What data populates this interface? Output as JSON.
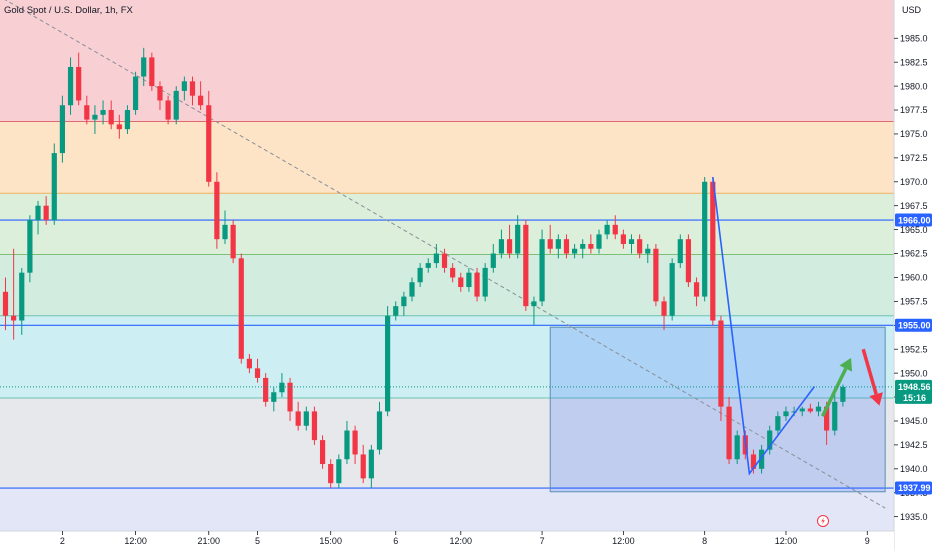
{
  "chart_data": {
    "type": "candlestick",
    "title": "Gold Spot / U.S. Dollar, 1h, FX",
    "currency": "USD",
    "ylim": [
      1933.5,
      1989
    ],
    "y_ticks": [
      1935,
      1937.5,
      1940,
      1942.5,
      1945,
      1947.5,
      1950,
      1952.5,
      1955,
      1957.5,
      1960,
      1962.5,
      1965,
      1967.5,
      1970,
      1972.5,
      1975,
      1977.5,
      1980,
      1982.5,
      1985
    ],
    "x_ticks": [
      {
        "label": "2",
        "index": 7
      },
      {
        "label": "12:00",
        "index": 16
      },
      {
        "label": "21:00",
        "index": 25
      },
      {
        "label": "5",
        "index": 31
      },
      {
        "label": "15:00",
        "index": 40
      },
      {
        "label": "6",
        "index": 48
      },
      {
        "label": "12:00",
        "index": 56
      },
      {
        "label": "7",
        "index": 66
      },
      {
        "label": "12:00",
        "index": 76
      },
      {
        "label": "8",
        "index": 86
      },
      {
        "label": "12:00",
        "index": 96
      },
      {
        "label": "9",
        "index": 106
      }
    ],
    "zones": [
      {
        "from": 1976.3,
        "to": 1989,
        "color": "#f8d0d4"
      },
      {
        "from": 1968.8,
        "to": 1976.3,
        "color": "#fde4c6"
      },
      {
        "from": 1962.4,
        "to": 1968.8,
        "color": "#dbefda"
      },
      {
        "from": 1956.0,
        "to": 1962.4,
        "color": "#d2ecdf"
      },
      {
        "from": 1947.4,
        "to": 1956.0,
        "color": "#cdeef3"
      },
      {
        "from": 1937.99,
        "to": 1947.4,
        "color": "#e6e8ec"
      },
      {
        "from": 1933.5,
        "to": 1937.99,
        "color": "#e3e6f7"
      }
    ],
    "zone_lines": [
      {
        "price": 1976.3,
        "color": "#e06a72"
      },
      {
        "price": 1968.8,
        "color": "#f0b060"
      },
      {
        "price": 1962.4,
        "color": "#7cbf77"
      },
      {
        "price": 1956.0,
        "color": "#6cc4b0"
      },
      {
        "price": 1947.4,
        "color": "#6cc4b0"
      }
    ],
    "levels": [
      {
        "label": "1966.00",
        "price": 1966.0
      },
      {
        "label": "1955.00",
        "price": 1955.0
      },
      {
        "label": "1937.99",
        "price": 1937.99
      }
    ],
    "last_price": {
      "label": "1948.56",
      "countdown": "15:16",
      "price": 1948.56
    },
    "up_color": "#089981",
    "down_color": "#f23645",
    "level_color": "#2962ff",
    "candles": [
      [
        1958.5,
        1960.0,
        1954.5,
        1956.0
      ],
      [
        1956.0,
        1963.0,
        1953.5,
        1955.5
      ],
      [
        1955.5,
        1961.0,
        1954.0,
        1960.5
      ],
      [
        1960.5,
        1966.5,
        1959.5,
        1966.0
      ],
      [
        1966.0,
        1968.0,
        1964.5,
        1967.5
      ],
      [
        1967.5,
        1968.5,
        1965.5,
        1966.0
      ],
      [
        1966.0,
        1974.0,
        1965.5,
        1973.0
      ],
      [
        1973.0,
        1979.0,
        1972.0,
        1978.0
      ],
      [
        1978.0,
        1983.0,
        1977.0,
        1982.0
      ],
      [
        1982.0,
        1983.5,
        1978.0,
        1978.5
      ],
      [
        1978.0,
        1979.0,
        1976.0,
        1976.5
      ],
      [
        1976.5,
        1978.0,
        1975.0,
        1977.0
      ],
      [
        1977.0,
        1978.5,
        1976.0,
        1977.5
      ],
      [
        1977.5,
        1978.5,
        1975.5,
        1976.0
      ],
      [
        1976.0,
        1977.0,
        1974.5,
        1975.5
      ],
      [
        1975.5,
        1978.0,
        1975.0,
        1977.5
      ],
      [
        1977.5,
        1981.5,
        1977.0,
        1981.0
      ],
      [
        1981.0,
        1984.0,
        1980.0,
        1983.0
      ],
      [
        1983.0,
        1983.5,
        1979.5,
        1980.0
      ],
      [
        1980.0,
        1980.5,
        1977.5,
        1978.5
      ],
      [
        1978.5,
        1979.0,
        1976.0,
        1976.5
      ],
      [
        1976.5,
        1980.0,
        1976.0,
        1979.5
      ],
      [
        1979.5,
        1981.0,
        1978.5,
        1980.5
      ],
      [
        1980.5,
        1981.0,
        1978.0,
        1979.0
      ],
      [
        1979.0,
        1980.5,
        1977.5,
        1978.0
      ],
      [
        1978.0,
        1979.5,
        1969.5,
        1970.0
      ],
      [
        1970.0,
        1971.0,
        1963.0,
        1964.0
      ],
      [
        1964.0,
        1967.0,
        1963.5,
        1965.5
      ],
      [
        1965.5,
        1966.0,
        1961.5,
        1962.0
      ],
      [
        1962.0,
        1962.5,
        1951.0,
        1951.5
      ],
      [
        1951.5,
        1952.0,
        1950.0,
        1950.5
      ],
      [
        1950.5,
        1951.5,
        1949.0,
        1949.5
      ],
      [
        1949.5,
        1950.0,
        1946.5,
        1947.0
      ],
      [
        1947.0,
        1948.5,
        1946.0,
        1948.0
      ],
      [
        1948.0,
        1950.0,
        1947.5,
        1949.0
      ],
      [
        1949.0,
        1949.5,
        1945.0,
        1946.0
      ],
      [
        1946.0,
        1947.0,
        1944.0,
        1944.5
      ],
      [
        1944.5,
        1946.5,
        1944.0,
        1946.0
      ],
      [
        1946.0,
        1946.5,
        1942.5,
        1943.0
      ],
      [
        1943.0,
        1943.5,
        1940.0,
        1940.5
      ],
      [
        1940.5,
        1941.0,
        1938.0,
        1938.5
      ],
      [
        1938.5,
        1941.5,
        1938.0,
        1941.0
      ],
      [
        1941.0,
        1945.0,
        1940.5,
        1944.0
      ],
      [
        1944.0,
        1944.5,
        1940.5,
        1941.5
      ],
      [
        1941.5,
        1942.5,
        1938.5,
        1939.0
      ],
      [
        1939.0,
        1942.5,
        1938.0,
        1942.0
      ],
      [
        1942.0,
        1947.0,
        1941.5,
        1946.0
      ],
      [
        1946.0,
        1957.0,
        1945.5,
        1956.0
      ],
      [
        1956.0,
        1957.5,
        1955.5,
        1957.0
      ],
      [
        1957.0,
        1958.5,
        1956.0,
        1958.0
      ],
      [
        1958.0,
        1960.0,
        1957.5,
        1959.5
      ],
      [
        1959.5,
        1961.5,
        1959.0,
        1961.0
      ],
      [
        1961.0,
        1962.0,
        1960.5,
        1961.5
      ],
      [
        1961.5,
        1963.5,
        1961.0,
        1962.5
      ],
      [
        1962.5,
        1963.0,
        1960.5,
        1961.0
      ],
      [
        1961.0,
        1961.5,
        1959.5,
        1960.0
      ],
      [
        1960.0,
        1960.5,
        1958.5,
        1959.0
      ],
      [
        1959.0,
        1961.0,
        1958.5,
        1960.5
      ],
      [
        1960.5,
        1961.0,
        1957.5,
        1958.0
      ],
      [
        1958.0,
        1961.5,
        1957.5,
        1961.0
      ],
      [
        1961.0,
        1963.5,
        1960.5,
        1962.5
      ],
      [
        1962.5,
        1965.0,
        1962.0,
        1964.0
      ],
      [
        1964.0,
        1965.5,
        1962.0,
        1962.5
      ],
      [
        1962.5,
        1966.5,
        1962.0,
        1965.5
      ],
      [
        1965.5,
        1966.0,
        1956.5,
        1957.0
      ],
      [
        1957.0,
        1958.0,
        1955.0,
        1957.5
      ],
      [
        1957.5,
        1965.0,
        1957.0,
        1964.0
      ],
      [
        1964.0,
        1965.5,
        1962.5,
        1963.0
      ],
      [
        1963.0,
        1964.5,
        1962.0,
        1964.0
      ],
      [
        1964.0,
        1964.5,
        1962.0,
        1962.5
      ],
      [
        1962.5,
        1963.5,
        1962.0,
        1963.0
      ],
      [
        1963.0,
        1964.0,
        1962.0,
        1963.5
      ],
      [
        1963.5,
        1964.5,
        1962.5,
        1963.0
      ],
      [
        1963.0,
        1965.0,
        1962.5,
        1964.5
      ],
      [
        1964.5,
        1966.0,
        1964.0,
        1965.5
      ],
      [
        1965.5,
        1966.5,
        1964.0,
        1964.5
      ],
      [
        1964.5,
        1965.0,
        1963.0,
        1963.5
      ],
      [
        1963.5,
        1964.5,
        1962.5,
        1964.0
      ],
      [
        1964.0,
        1964.5,
        1962.0,
        1962.5
      ],
      [
        1962.5,
        1963.5,
        1961.5,
        1963.0
      ],
      [
        1963.0,
        1963.5,
        1957.0,
        1957.5
      ],
      [
        1957.5,
        1958.0,
        1954.5,
        1956.0
      ],
      [
        1956.0,
        1962.0,
        1955.5,
        1961.5
      ],
      [
        1961.5,
        1964.5,
        1961.0,
        1964.0
      ],
      [
        1964.0,
        1964.5,
        1959.0,
        1959.5
      ],
      [
        1959.5,
        1960.0,
        1957.0,
        1958.0
      ],
      [
        1958.0,
        1970.5,
        1957.5,
        1970.0
      ],
      [
        1970.0,
        1970.5,
        1955.0,
        1955.5
      ],
      [
        1955.5,
        1956.0,
        1945.0,
        1946.5
      ],
      [
        1946.5,
        1947.5,
        1940.5,
        1941.0
      ],
      [
        1941.0,
        1944.0,
        1940.5,
        1943.5
      ],
      [
        1943.5,
        1944.0,
        1941.0,
        1941.5
      ],
      [
        1941.5,
        1942.0,
        1939.5,
        1940.0
      ],
      [
        1940.0,
        1942.5,
        1939.5,
        1942.0
      ],
      [
        1942.0,
        1944.5,
        1941.5,
        1944.0
      ],
      [
        1944.0,
        1946.0,
        1943.5,
        1945.5
      ],
      [
        1945.5,
        1946.5,
        1945.0,
        1946.0
      ],
      [
        1946.0,
        1946.5,
        1945.5,
        1946.0
      ],
      [
        1946.0,
        1946.5,
        1945.5,
        1946.3
      ],
      [
        1946.3,
        1946.8,
        1945.8,
        1946.0
      ],
      [
        1946.0,
        1947.0,
        1945.5,
        1946.5
      ],
      [
        1946.5,
        1947.0,
        1942.5,
        1944.0
      ],
      [
        1944.0,
        1948.0,
        1943.5,
        1947.0
      ],
      [
        1947.0,
        1948.8,
        1946.5,
        1948.56
      ]
    ],
    "rectangle": {
      "from_index": 67,
      "to_index": 108.2,
      "top": 1954.8,
      "bottom": 1937.6
    },
    "trend_line": {
      "from": [
        -1,
        1989.5
      ],
      "to": [
        108.2,
        1935.9
      ]
    },
    "pattern": [
      [
        87,
        1970.5
      ],
      [
        91.5,
        1939.5
      ],
      [
        99.5,
        1948.6
      ]
    ],
    "targets": [
      {
        "direction": "up",
        "from": [
          100.5,
          1945.5
        ],
        "to": [
          104,
          1951.6
        ],
        "color": "#4caf50"
      },
      {
        "direction": "down",
        "from": [
          105.5,
          1952.5
        ],
        "to": [
          107.5,
          1946.6
        ],
        "color": "#f23645"
      }
    ]
  }
}
